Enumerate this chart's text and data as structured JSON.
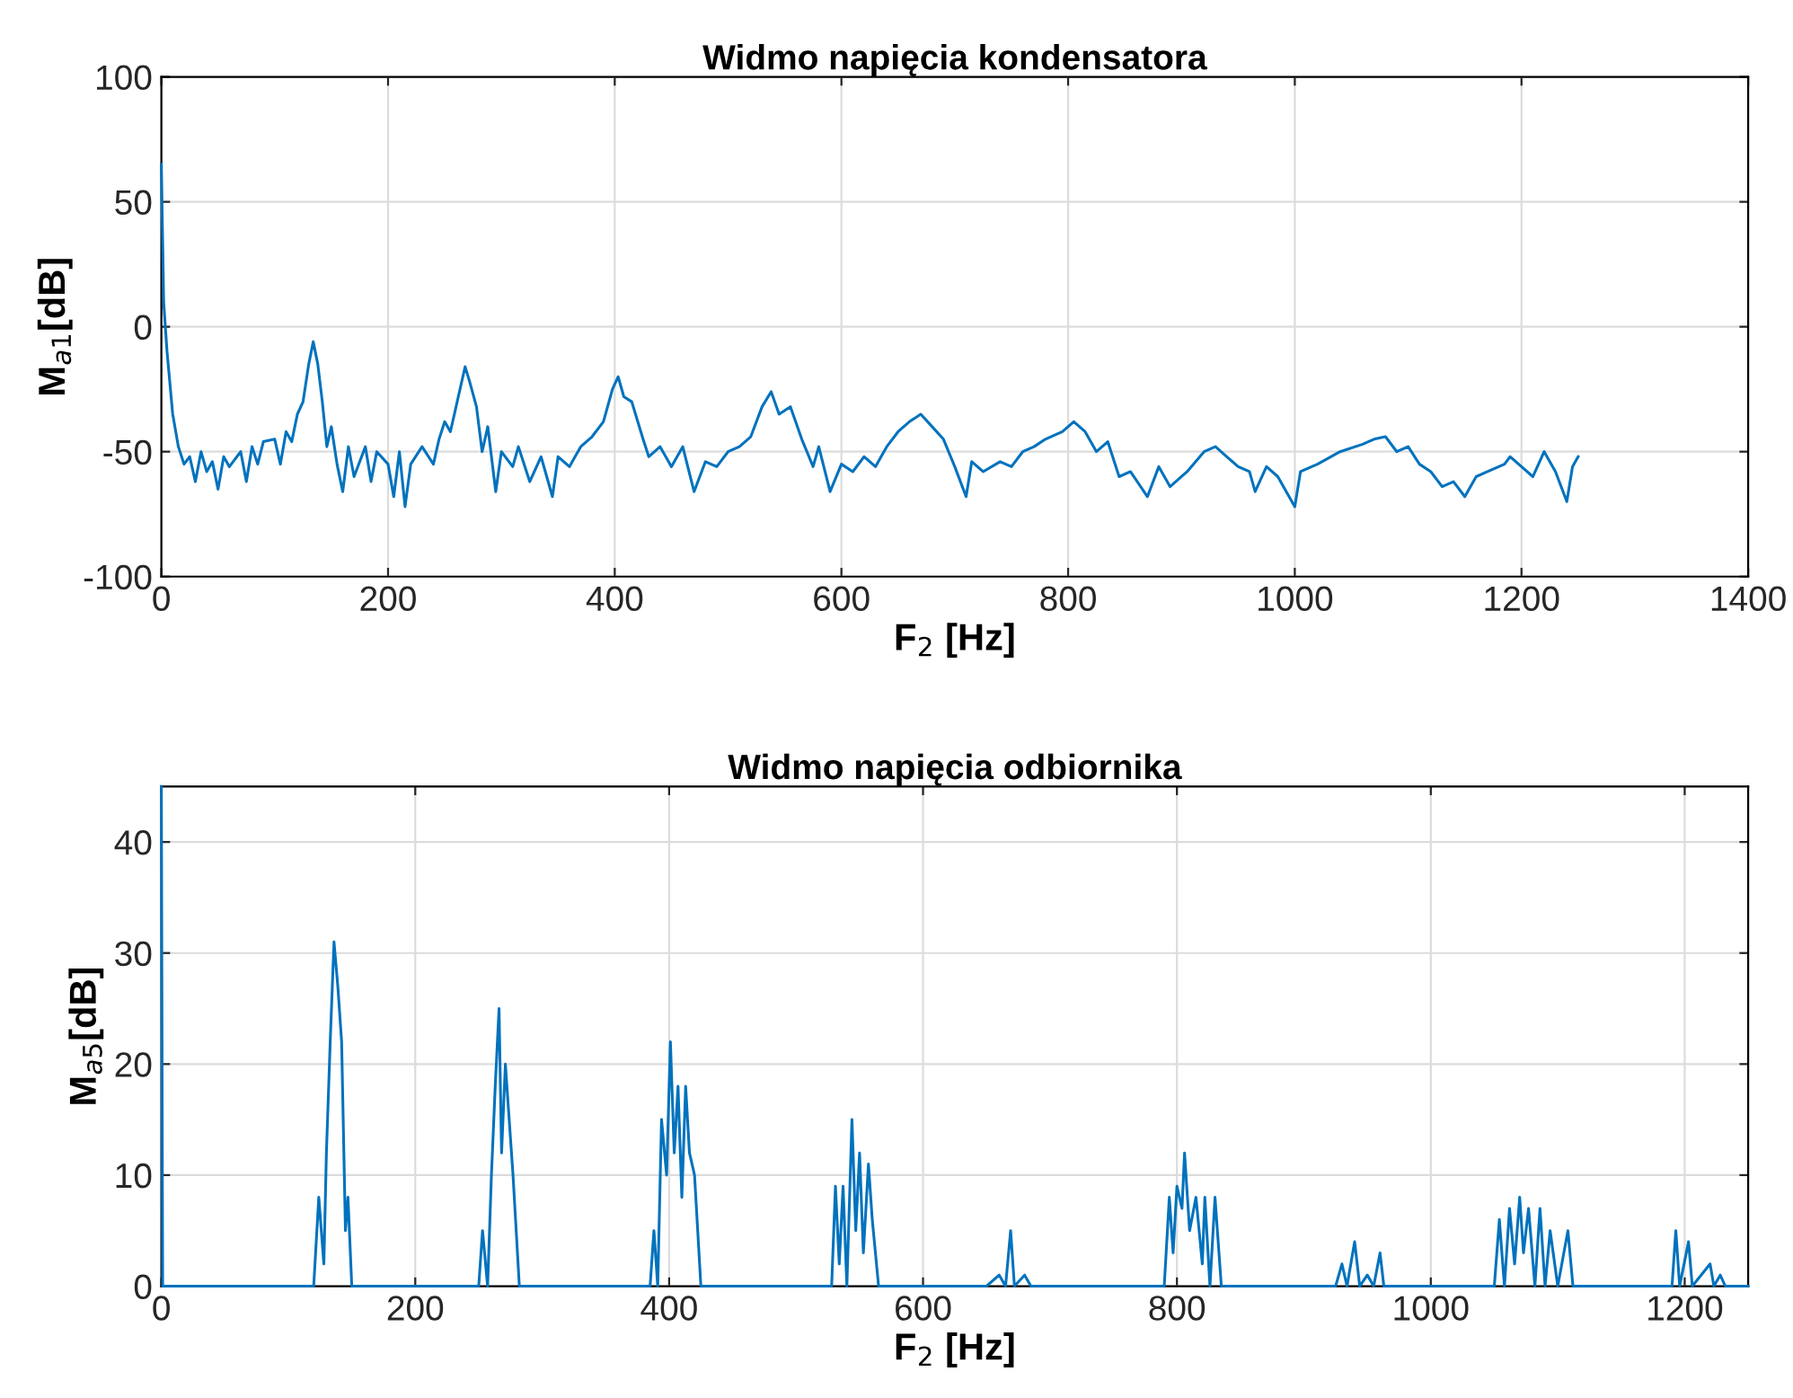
{
  "chart_data": [
    {
      "type": "line",
      "title": "Widmo napięcia kondensatora",
      "xlabel": "F$_{2}$ [Hz]",
      "ylabel": "M$_{a1}$[dB]",
      "xlim": [
        0,
        1400
      ],
      "xticks": [
        0,
        200,
        400,
        600,
        800,
        1000,
        1200,
        1400
      ],
      "ylim": [
        -100,
        100
      ],
      "yticks": [
        -100,
        -50,
        0,
        50,
        100
      ],
      "grid": true,
      "series": [
        {
          "color": "#0072bd",
          "x": [
            0,
            2,
            5,
            10,
            15,
            20,
            25,
            30,
            35,
            40,
            45,
            50,
            55,
            60,
            70,
            75,
            80,
            85,
            90,
            100,
            105,
            110,
            115,
            120,
            125,
            130,
            134,
            138,
            142,
            146,
            150,
            155,
            160,
            165,
            170,
            180,
            185,
            190,
            200,
            205,
            210,
            215,
            220,
            230,
            240,
            245,
            250,
            255,
            262,
            268,
            272,
            278,
            283,
            288,
            295,
            300,
            310,
            315,
            325,
            335,
            345,
            350,
            360,
            370,
            380,
            390,
            398,
            403,
            408,
            415,
            425,
            430,
            440,
            450,
            460,
            470,
            480,
            490,
            500,
            510,
            520,
            530,
            538,
            545,
            555,
            565,
            575,
            580,
            590,
            600,
            610,
            620,
            630,
            640,
            650,
            660,
            670,
            680,
            690,
            700,
            710,
            715,
            725,
            740,
            750,
            760,
            770,
            780,
            795,
            805,
            815,
            825,
            835,
            845,
            855,
            870,
            880,
            890,
            905,
            920,
            930,
            940,
            950,
            960,
            965,
            975,
            985,
            1000,
            1005,
            1020,
            1040,
            1060,
            1070,
            1080,
            1090,
            1100,
            1110,
            1120,
            1130,
            1140,
            1150,
            1160,
            1170,
            1185,
            1190,
            1200,
            1210,
            1220,
            1230,
            1240,
            1245,
            1250
          ],
          "values": [
            65,
            10,
            -10,
            -35,
            -48,
            -55,
            -52,
            -62,
            -50,
            -58,
            -54,
            -65,
            -52,
            -56,
            -50,
            -62,
            -48,
            -55,
            -46,
            -45,
            -55,
            -42,
            -46,
            -35,
            -30,
            -15,
            -6,
            -15,
            -30,
            -48,
            -40,
            -55,
            -66,
            -48,
            -60,
            -48,
            -62,
            -50,
            -55,
            -68,
            -50,
            -72,
            -55,
            -48,
            -55,
            -45,
            -38,
            -42,
            -28,
            -16,
            -22,
            -32,
            -50,
            -40,
            -66,
            -50,
            -56,
            -48,
            -62,
            -52,
            -68,
            -52,
            -56,
            -48,
            -44,
            -38,
            -25,
            -20,
            -28,
            -30,
            -45,
            -52,
            -48,
            -56,
            -48,
            -66,
            -54,
            -56,
            -50,
            -48,
            -44,
            -32,
            -26,
            -35,
            -32,
            -45,
            -56,
            -48,
            -66,
            -55,
            -58,
            -52,
            -56,
            -48,
            -42,
            -38,
            -35,
            -40,
            -45,
            -56,
            -68,
            -54,
            -58,
            -54,
            -56,
            -50,
            -48,
            -45,
            -42,
            -38,
            -42,
            -50,
            -46,
            -60,
            -58,
            -68,
            -56,
            -64,
            -58,
            -50,
            -48,
            -52,
            -56,
            -58,
            -66,
            -56,
            -60,
            -72,
            -58,
            -55,
            -50,
            -47,
            -45,
            -44,
            -50,
            -48,
            -55,
            -58,
            -64,
            -62,
            -68,
            -60,
            -58,
            -55,
            -52,
            -56,
            -60,
            -50,
            -58,
            -70,
            -56,
            -52
          ]
        }
      ]
    },
    {
      "type": "line",
      "title": "Widmo napięcia odbiornika",
      "xlabel": "F$_{2}$ [Hz]",
      "ylabel": "M$_{a5}$[dB]",
      "xlim": [
        0,
        1250
      ],
      "xticks": [
        0,
        200,
        400,
        600,
        800,
        1000,
        1200
      ],
      "ylim": [
        0,
        45
      ],
      "yticks": [
        0,
        10,
        20,
        30,
        40
      ],
      "grid": true,
      "series": [
        {
          "color": "#0072bd",
          "x": [
            0,
            1,
            120,
            124,
            128,
            130,
            133,
            136,
            139,
            142,
            145,
            147,
            150,
            250,
            253,
            257,
            260,
            263,
            266,
            268,
            271,
            274,
            277,
            282,
            385,
            388,
            391,
            394,
            398,
            401,
            404,
            407,
            410,
            413,
            416,
            420,
            425,
            528,
            531,
            534,
            537,
            540,
            544,
            547,
            550,
            553,
            557,
            560,
            565,
            650,
            660,
            665,
            669,
            672,
            680,
            685,
            790,
            794,
            797,
            800,
            804,
            806,
            810,
            815,
            820,
            822,
            826,
            830,
            835,
            925,
            930,
            934,
            940,
            944,
            950,
            955,
            960,
            963,
            1050,
            1054,
            1058,
            1062,
            1066,
            1070,
            1073,
            1077,
            1082,
            1086,
            1090,
            1094,
            1100,
            1108,
            1112,
            1190,
            1193,
            1196,
            1203,
            1206,
            1220,
            1223,
            1228,
            1232,
            1250
          ],
          "values": [
            45,
            0,
            0,
            8,
            2,
            12,
            22,
            31,
            27,
            22,
            5,
            8,
            0,
            0,
            5,
            0,
            10,
            18,
            25,
            12,
            20,
            15,
            10,
            0,
            0,
            5,
            0,
            15,
            10,
            22,
            12,
            18,
            8,
            18,
            12,
            10,
            0,
            0,
            9,
            2,
            9,
            0,
            15,
            5,
            12,
            3,
            11,
            6,
            0,
            0,
            1,
            0,
            5,
            0,
            1,
            0,
            0,
            8,
            3,
            9,
            7,
            12,
            5,
            8,
            2,
            8,
            0,
            8,
            0,
            0,
            2,
            0,
            4,
            0,
            1,
            0,
            3,
            0,
            0,
            6,
            0,
            7,
            2,
            8,
            3,
            7,
            0,
            7,
            0,
            5,
            0,
            5,
            0,
            0,
            5,
            0,
            4,
            0,
            2,
            0,
            1,
            0,
            0
          ]
        }
      ]
    }
  ]
}
